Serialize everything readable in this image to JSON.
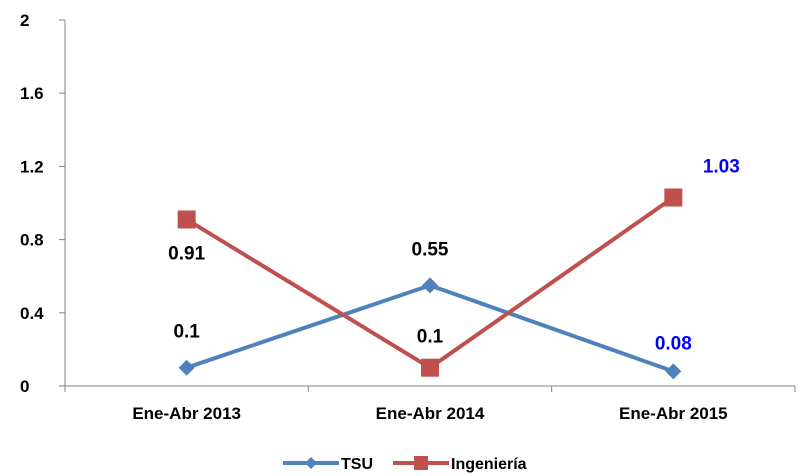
{
  "chart_data": {
    "type": "line",
    "categories": [
      "Ene-Abr 2013",
      "Ene-Abr 2014",
      "Ene-Abr 2015"
    ],
    "series": [
      {
        "name": "TSU",
        "values": [
          0.1,
          0.55,
          0.08
        ],
        "color": "#4f81bd",
        "marker": "diamond"
      },
      {
        "name": "Ingeniería",
        "values": [
          0.91,
          0.1,
          1.03
        ],
        "color": "#c0504d",
        "marker": "square"
      }
    ],
    "data_labels": {
      "TSU": [
        "0.1",
        "0.55",
        "0.08"
      ],
      "Ingeniería": [
        "0.91",
        "0.1",
        "1.03"
      ]
    },
    "highlight_label_color": "#0000ff",
    "ylim": [
      0,
      2
    ],
    "yticks": [
      "0",
      "0.4",
      "0.8",
      "1.2",
      "1.6",
      "2"
    ],
    "title": "",
    "xlabel": "",
    "ylabel": "",
    "grid": false,
    "legend_position": "bottom"
  }
}
